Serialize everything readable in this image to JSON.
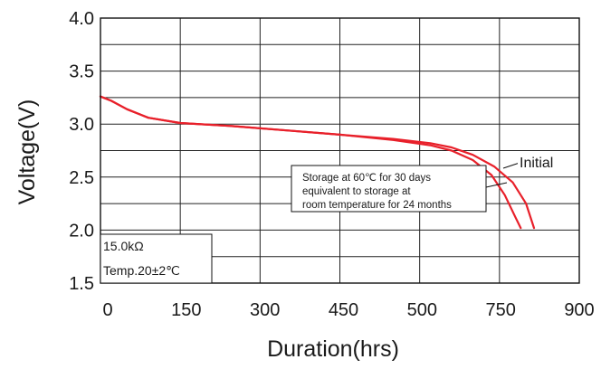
{
  "chart_data": {
    "type": "line",
    "xlabel": "Duration(hrs)",
    "ylabel": "Voltage(V)",
    "xlim": [
      0,
      900
    ],
    "ylim": [
      1.5,
      4.0
    ],
    "x_ticks": [
      "0",
      "150",
      "300",
      "450",
      "500",
      "750",
      "900"
    ],
    "y_ticks": [
      "1.5",
      "2.0",
      "2.5",
      "3.0",
      "3.5",
      "4.0"
    ],
    "grid": true,
    "series_color": "#e8202a",
    "series": [
      {
        "name": "Initial",
        "points": [
          [
            0,
            3.26
          ],
          [
            20,
            3.22
          ],
          [
            50,
            3.14
          ],
          [
            90,
            3.06
          ],
          [
            150,
            3.01
          ],
          [
            250,
            2.98
          ],
          [
            350,
            2.94
          ],
          [
            450,
            2.9
          ],
          [
            550,
            2.86
          ],
          [
            620,
            2.82
          ],
          [
            660,
            2.78
          ],
          [
            700,
            2.71
          ],
          [
            740,
            2.6
          ],
          [
            775,
            2.45
          ],
          [
            800,
            2.25
          ],
          [
            815,
            2.02
          ]
        ]
      },
      {
        "name": "",
        "points": [
          [
            0,
            3.26
          ],
          [
            20,
            3.22
          ],
          [
            50,
            3.14
          ],
          [
            90,
            3.06
          ],
          [
            150,
            3.01
          ],
          [
            250,
            2.98
          ],
          [
            350,
            2.94
          ],
          [
            450,
            2.9
          ],
          [
            550,
            2.85
          ],
          [
            620,
            2.8
          ],
          [
            660,
            2.75
          ],
          [
            700,
            2.66
          ],
          [
            735,
            2.52
          ],
          [
            760,
            2.33
          ],
          [
            780,
            2.12
          ],
          [
            790,
            2.02
          ]
        ]
      }
    ],
    "annotation": "Storage at 60℃ for 30 days equivalent to storage at room temperature for 24 months",
    "annotation_lines": [
      "Storage at 60℃ for 30 days",
      "equivalent to storage at",
      "room temperature for 24 months"
    ],
    "conditions": [
      "15.0kΩ",
      "Temp.20±2℃"
    ]
  }
}
